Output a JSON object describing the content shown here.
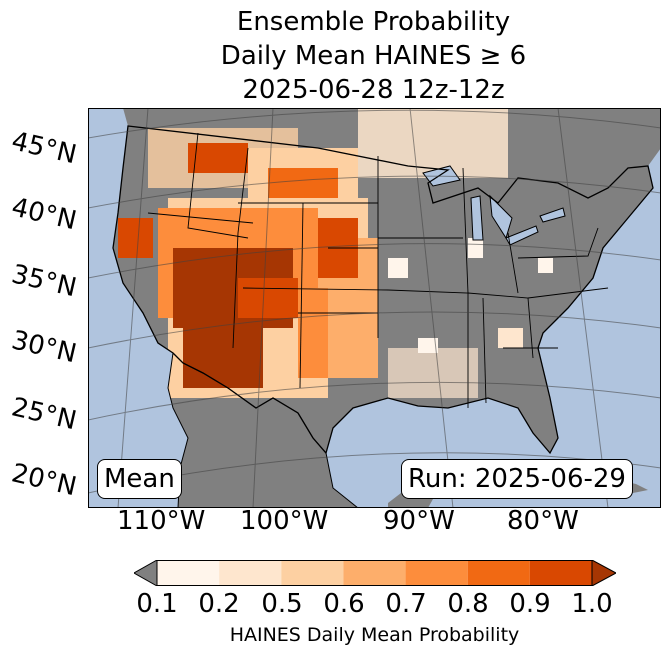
{
  "title": {
    "line1": "Ensemble Probability",
    "line2": "Daily Mean HAINES ≥ 6",
    "line3": "2025-06-28 12z-12z"
  },
  "map": {
    "latitude_labels": [
      "45°N",
      "40°N",
      "35°N",
      "30°N",
      "25°N",
      "20°N"
    ],
    "longitude_labels": [
      "110°W",
      "100°W",
      "90°W",
      "80°W"
    ],
    "stat_label": "Mean",
    "run_label": "Run: 2025-06-29",
    "colors": {
      "ocean": "#b0c4de",
      "land_no_data": "#808080",
      "border": "#000000",
      "gridline": "#404040"
    }
  },
  "colorbar": {
    "ticks": [
      "0.1",
      "0.2",
      "0.5",
      "0.6",
      "0.7",
      "0.8",
      "0.9",
      "1.0"
    ],
    "colors": [
      "#fff5eb",
      "#fee6ce",
      "#fdd0a2",
      "#fdae6b",
      "#fd8d3c",
      "#f16913",
      "#d94801",
      "#a63603"
    ],
    "under_color": "#808080",
    "label": "HAINES Daily Mean Probability"
  }
}
